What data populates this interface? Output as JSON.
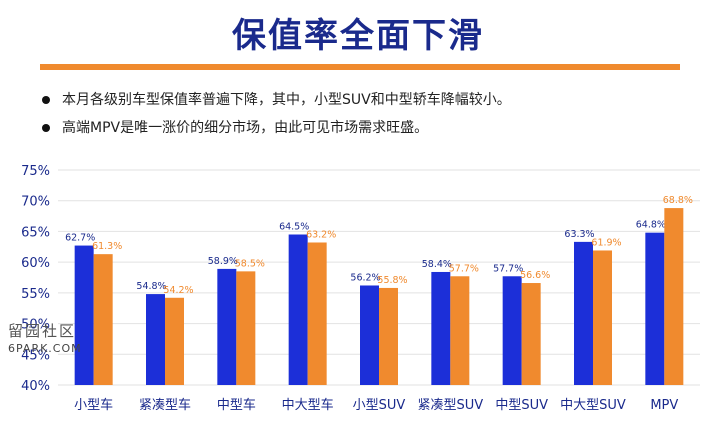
{
  "title": "保值率全面下滑",
  "bullets": [
    "本月各级别车型保值率普遍下降，其中，小型SUV和中型轿车降幅较小。",
    "高端MPV是唯一涨价的细分市场，由此可见市场需求旺盛。"
  ],
  "watermark": {
    "cn": "留园社区",
    "en": "6PARK.COM"
  },
  "colors": {
    "series1": "#1c2fd8",
    "series2": "#f08a2e",
    "title": "#1a2a8c",
    "accent_rule": "#f08a2e"
  },
  "chart_data": {
    "type": "bar",
    "categories": [
      "小型车",
      "紧凑型车",
      "中型车",
      "中大型车",
      "小型SUV",
      "紧凑型SUV",
      "中型SUV",
      "中大型SUV",
      "MPV"
    ],
    "series": [
      {
        "values": [
          62.7,
          54.8,
          58.9,
          64.5,
          56.2,
          58.4,
          57.7,
          63.3,
          64.8
        ],
        "labels": [
          "62.7%",
          "54.8%",
          "58.9%",
          "64.5%",
          "56.2%",
          "58.4%",
          "57.7%",
          "63.3%",
          "64.8%"
        ]
      },
      {
        "values": [
          61.3,
          54.2,
          58.5,
          63.2,
          55.8,
          57.7,
          56.6,
          61.9,
          68.8
        ],
        "labels": [
          "61.3%",
          "54.2%",
          "58.5%",
          "63.2%",
          "55.8%",
          "57.7%",
          "56.6%",
          "61.9%",
          "68.8%"
        ]
      }
    ],
    "ylim": [
      40,
      75
    ],
    "yticks": [
      40,
      45,
      50,
      55,
      60,
      65,
      70,
      75
    ],
    "ytick_labels": [
      "40%",
      "45%",
      "50%",
      "55%",
      "60%",
      "65%",
      "70%",
      "75%"
    ],
    "grid": true,
    "legend": "none"
  }
}
